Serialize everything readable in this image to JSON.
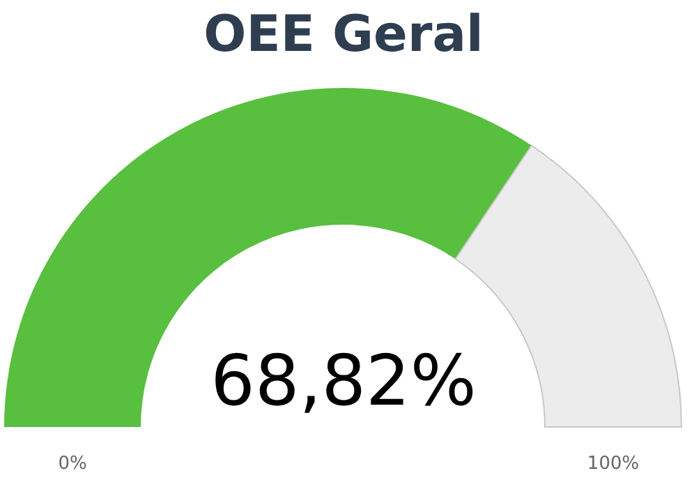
{
  "chart_data": {
    "type": "donut",
    "title": "OEE Geral",
    "categories": [
      null,
      null
    ],
    "values": [
      68.82,
      31.18
    ],
    "colors": [
      "#58bf3f",
      "#ececec"
    ],
    "value_labels": [
      "68,82%",
      null
    ],
    "annotations": [
      "0%",
      "100%"
    ]
  }
}
